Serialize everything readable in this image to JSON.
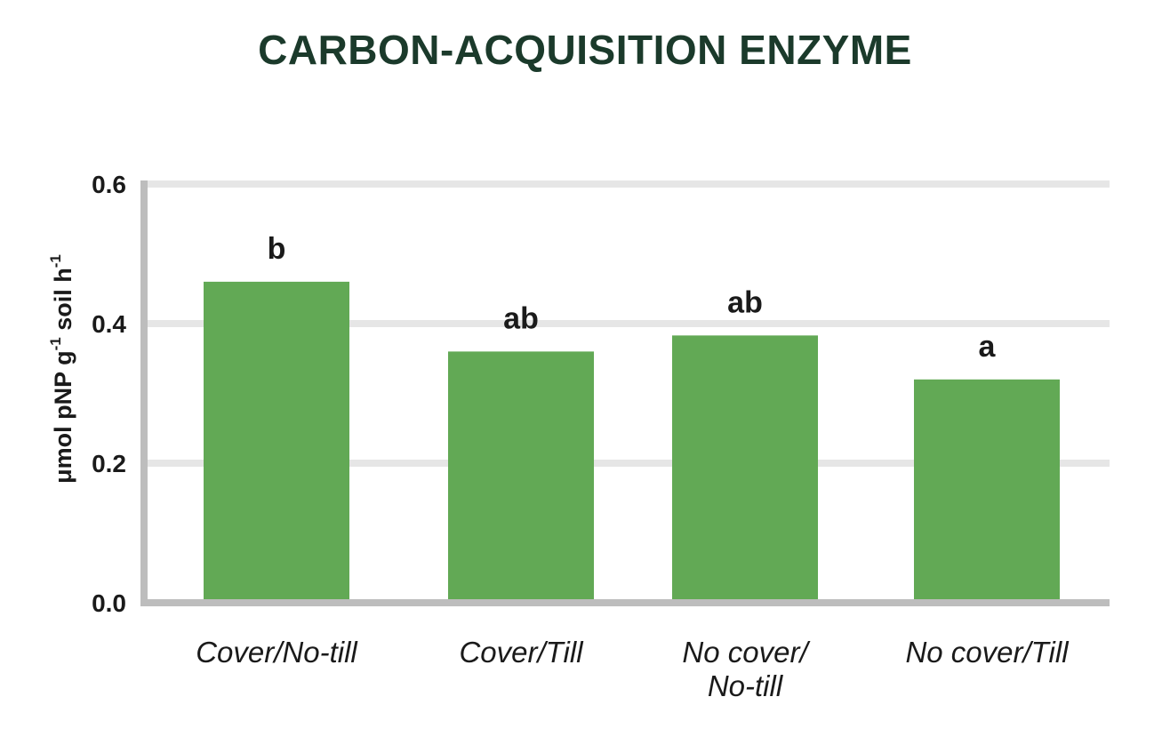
{
  "chart_data": {
    "type": "bar",
    "title": "CARBON-ACQUISITION ENZYME",
    "ylabel": {
      "parts": [
        "μmol pNP g",
        "-1",
        " soil h",
        "-1"
      ]
    },
    "categories": [
      {
        "lines": [
          "Cover/No-till"
        ]
      },
      {
        "lines": [
          "Cover/Till"
        ]
      },
      {
        "lines": [
          "No cover/",
          "No-till"
        ]
      },
      {
        "lines": [
          "No cover/Till"
        ]
      }
    ],
    "values": [
      0.46,
      0.36,
      0.383,
      0.32
    ],
    "bar_labels": [
      "b",
      "ab",
      "ab",
      "a"
    ],
    "yticks": [
      "0.0",
      "0.2",
      "0.4",
      "0.6"
    ],
    "ylim": [
      0,
      0.6
    ],
    "grid": true,
    "colors": {
      "title": "#1b3a2b",
      "bar": "#62a955",
      "grid": "#e6e6e6",
      "axis": "#bdbdbd",
      "text": "#1a1a1a"
    }
  }
}
